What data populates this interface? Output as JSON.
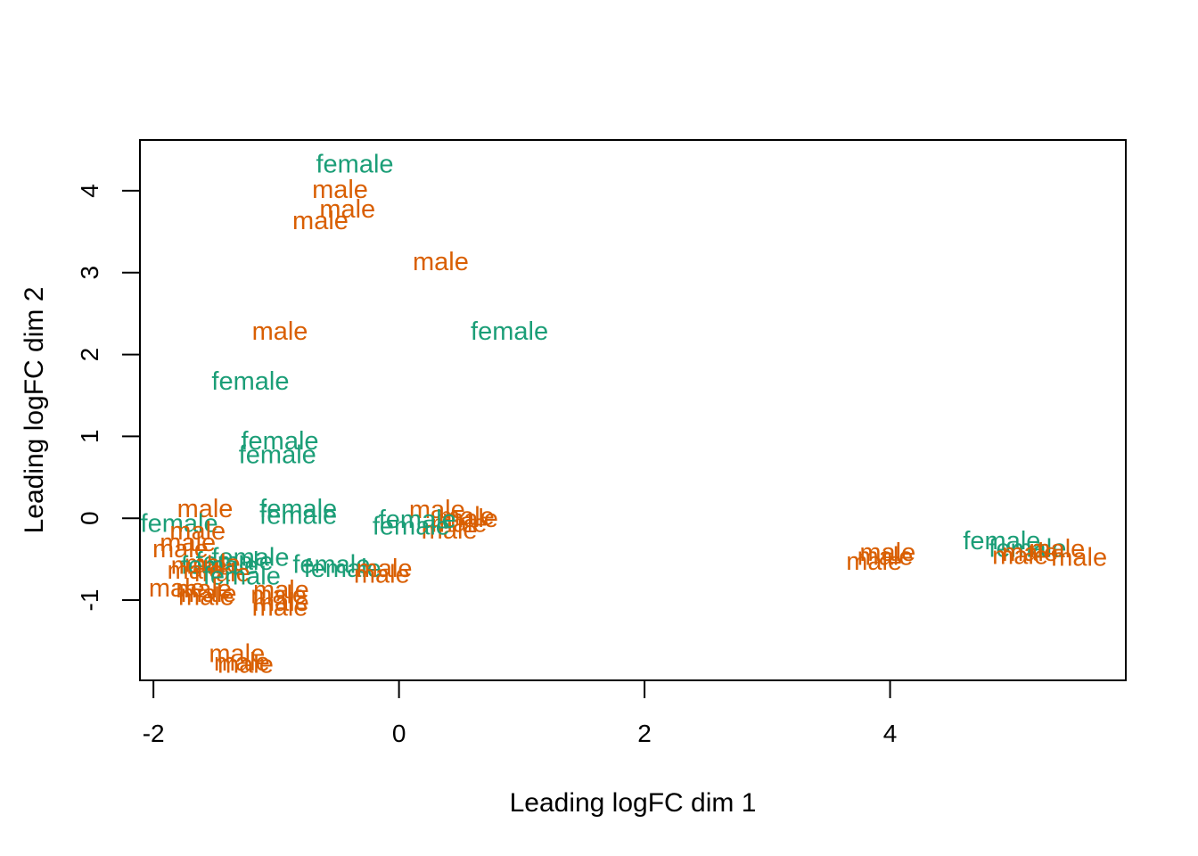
{
  "chart_data": {
    "type": "scatter",
    "title": "",
    "xlabel": "Leading logFC dim 1",
    "ylabel": "Leading logFC dim 2",
    "xlim": [
      -2.11,
      5.92
    ],
    "ylim": [
      -1.98,
      4.62
    ],
    "x_ticks": [
      -2,
      0,
      2,
      4
    ],
    "y_ticks": [
      -1,
      0,
      1,
      2,
      3,
      4
    ],
    "x_tick_labels": [
      "-2",
      "0",
      "2",
      "4"
    ],
    "y_tick_labels": [
      "-1",
      "0",
      "1",
      "2",
      "3",
      "4"
    ],
    "grid": false,
    "legend": "none",
    "marker": "text",
    "colors": {
      "female": "#1b9e77",
      "male": "#d95f02"
    },
    "points": [
      {
        "x": -0.36,
        "y": 4.33,
        "label": "female"
      },
      {
        "x": -0.48,
        "y": 4.02,
        "label": "male"
      },
      {
        "x": -0.42,
        "y": 3.78,
        "label": "male"
      },
      {
        "x": -0.64,
        "y": 3.64,
        "label": "male"
      },
      {
        "x": 0.34,
        "y": 3.14,
        "label": "male"
      },
      {
        "x": -0.97,
        "y": 2.29,
        "label": "male"
      },
      {
        "x": 0.9,
        "y": 2.29,
        "label": "female"
      },
      {
        "x": -1.21,
        "y": 1.68,
        "label": "female"
      },
      {
        "x": -0.97,
        "y": 0.95,
        "label": "female"
      },
      {
        "x": -0.99,
        "y": 0.78,
        "label": "female"
      },
      {
        "x": -1.58,
        "y": 0.12,
        "label": "male"
      },
      {
        "x": -0.82,
        "y": 0.12,
        "label": "female"
      },
      {
        "x": -0.82,
        "y": 0.04,
        "label": "female"
      },
      {
        "x": 0.31,
        "y": 0.11,
        "label": "male"
      },
      {
        "x": 0.55,
        "y": 0.03,
        "label": "male"
      },
      {
        "x": 0.58,
        "y": 0.0,
        "label": "male"
      },
      {
        "x": 0.49,
        "y": -0.06,
        "label": "male"
      },
      {
        "x": 0.41,
        "y": -0.14,
        "label": "male"
      },
      {
        "x": 0.15,
        "y": -0.01,
        "label": "female"
      },
      {
        "x": 0.1,
        "y": -0.09,
        "label": "female"
      },
      {
        "x": -1.79,
        "y": -0.06,
        "label": "female"
      },
      {
        "x": -1.64,
        "y": -0.15,
        "label": "male"
      },
      {
        "x": -1.72,
        "y": -0.29,
        "label": "male"
      },
      {
        "x": -1.78,
        "y": -0.37,
        "label": "male"
      },
      {
        "x": 4.91,
        "y": -0.27,
        "label": "female"
      },
      {
        "x": 5.12,
        "y": -0.36,
        "label": "female"
      },
      {
        "x": 5.14,
        "y": -0.41,
        "label": "male"
      },
      {
        "x": 5.36,
        "y": -0.37,
        "label": "male"
      },
      {
        "x": 5.06,
        "y": -0.45,
        "label": "male"
      },
      {
        "x": 5.54,
        "y": -0.47,
        "label": "male"
      },
      {
        "x": 3.98,
        "y": -0.41,
        "label": "male"
      },
      {
        "x": 3.96,
        "y": -0.46,
        "label": "male"
      },
      {
        "x": 3.87,
        "y": -0.52,
        "label": "male"
      },
      {
        "x": -1.21,
        "y": -0.47,
        "label": "female"
      },
      {
        "x": -1.34,
        "y": -0.52,
        "label": "female"
      },
      {
        "x": -1.52,
        "y": -0.55,
        "label": "male"
      },
      {
        "x": -1.63,
        "y": -0.57,
        "label": "male"
      },
      {
        "x": -1.46,
        "y": -0.57,
        "label": "female"
      },
      {
        "x": -1.66,
        "y": -0.63,
        "label": "male"
      },
      {
        "x": -1.44,
        "y": -0.66,
        "label": "male"
      },
      {
        "x": -1.28,
        "y": -0.7,
        "label": "female"
      },
      {
        "x": -0.55,
        "y": -0.56,
        "label": "female"
      },
      {
        "x": -0.46,
        "y": -0.61,
        "label": "female"
      },
      {
        "x": -0.12,
        "y": -0.61,
        "label": "male"
      },
      {
        "x": -0.14,
        "y": -0.68,
        "label": "male"
      },
      {
        "x": -1.81,
        "y": -0.85,
        "label": "male"
      },
      {
        "x": -1.59,
        "y": -0.86,
        "label": "male"
      },
      {
        "x": -1.55,
        "y": -0.91,
        "label": "male"
      },
      {
        "x": -1.57,
        "y": -0.95,
        "label": "male"
      },
      {
        "x": -0.96,
        "y": -0.87,
        "label": "male"
      },
      {
        "x": -0.98,
        "y": -0.93,
        "label": "male"
      },
      {
        "x": -0.96,
        "y": -1.02,
        "label": "male"
      },
      {
        "x": -0.97,
        "y": -1.08,
        "label": "male"
      },
      {
        "x": -1.32,
        "y": -1.65,
        "label": "male"
      },
      {
        "x": -1.28,
        "y": -1.75,
        "label": "male"
      },
      {
        "x": -1.25,
        "y": -1.78,
        "label": "male"
      }
    ]
  }
}
